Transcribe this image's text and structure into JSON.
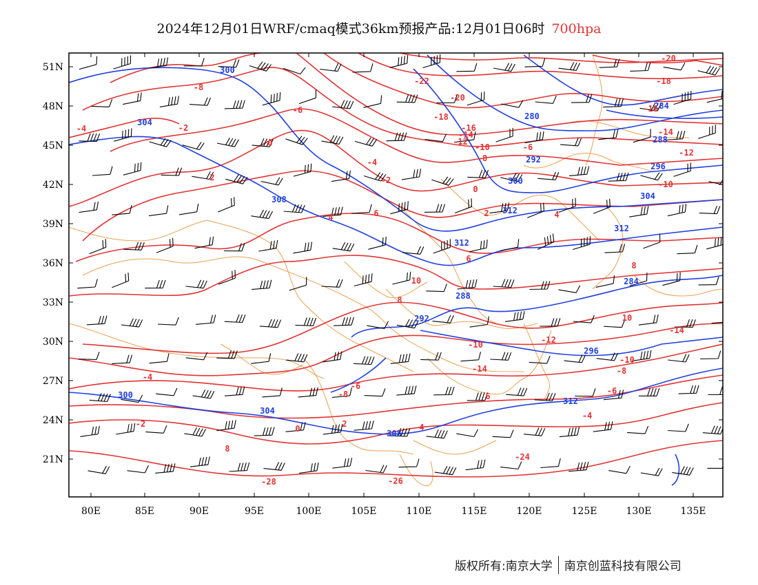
{
  "title": {
    "text": "2024年12月01日WRF/cmaq模式36km预报产品:12月01日06时",
    "level": "700hpa",
    "level_color": "#e23232"
  },
  "map": {
    "lon_labels": [
      "80E",
      "85E",
      "90E",
      "95E",
      "100E",
      "105E",
      "110E",
      "115E",
      "120E",
      "125E",
      "130E",
      "135E"
    ],
    "lat_labels": [
      "51N",
      "48N",
      "45N",
      "42N",
      "39N",
      "36N",
      "33N",
      "30N",
      "27N",
      "24N",
      "21N"
    ],
    "colors": {
      "height_contours": "#1f3fe0",
      "temperature_contours": "#e23232",
      "borders": "#e8a050",
      "wind_barbs": "#000000"
    },
    "height_labels": [
      "300",
      "304",
      "280",
      "284",
      "288",
      "292",
      "296",
      "300",
      "304",
      "308",
      "312",
      "312",
      "312",
      "284",
      "288",
      "292",
      "296",
      "300",
      "304",
      "308",
      "312"
    ],
    "temperature_labels": [
      "-20",
      "-18",
      "-16",
      "-14",
      "-12",
      "-10",
      "-8",
      "-6",
      "-4",
      "-2",
      "0",
      "2",
      "4",
      "6",
      "8",
      "10",
      "-10",
      "-14",
      "-8",
      "-6",
      "-4",
      "-2",
      "0",
      "2",
      "4",
      "6",
      "8",
      "-28",
      "-26",
      "-24",
      "-22",
      "-20",
      "-18",
      "-16",
      "-14",
      "-12",
      "-10",
      "-8",
      "-6",
      "-4",
      "-2",
      "0",
      "2",
      "4",
      "6",
      "8",
      "10",
      "-14",
      "-12",
      "-10",
      "-8",
      "-6",
      "-4",
      "-2",
      "-2",
      "0",
      "2",
      "4",
      "6",
      "8"
    ]
  },
  "footer": {
    "left": "版权所有:南京大学",
    "right": "南京创蓝科技有限公司"
  }
}
